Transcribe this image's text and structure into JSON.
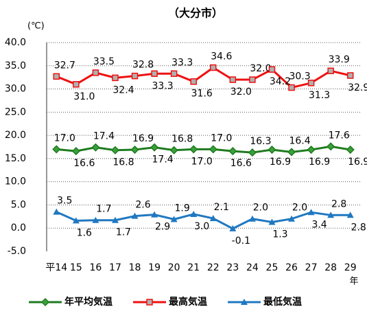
{
  "chart_data": {
    "type": "line",
    "title": "（大分市）",
    "y_unit": "(℃)",
    "x_label": "年",
    "categories": [
      "平14",
      "15",
      "16",
      "17",
      "18",
      "19",
      "20",
      "21",
      "22",
      "23",
      "24",
      "25",
      "26",
      "27",
      "28",
      "29"
    ],
    "series": [
      {
        "name": "年平均気温",
        "color": "#1e7b1e",
        "marker": "diamond",
        "values": [
          17.0,
          16.6,
          17.4,
          16.8,
          16.9,
          17.4,
          16.8,
          17.0,
          17.0,
          16.6,
          16.3,
          16.9,
          16.4,
          16.9,
          17.6,
          16.9
        ],
        "value_labels": [
          "17.0",
          "16.6",
          "17.4",
          "16.8",
          "16.9",
          "17.4",
          "16.8",
          "17.0",
          "17.0",
          "16.6",
          "16.3",
          "16.9",
          "16.4",
          "16.9",
          "17.6",
          "16.9"
        ]
      },
      {
        "name": "最高気温",
        "color": "#ee1111",
        "marker": "square",
        "values": [
          32.7,
          31.0,
          33.5,
          32.4,
          32.8,
          33.3,
          33.3,
          31.6,
          34.6,
          32.0,
          32.0,
          34.2,
          30.3,
          31.3,
          33.9,
          32.9
        ],
        "value_labels": [
          "32.7",
          "31.0",
          "33.5",
          "32.4",
          "32.8",
          "33.3",
          "33.3",
          "31.6",
          "34.6",
          "32.0",
          "32.0",
          "34.2",
          "30.3",
          "31.3",
          "33.9",
          "32.9"
        ]
      },
      {
        "name": "最低気温",
        "color": "#1f78c1",
        "marker": "triangle",
        "values": [
          3.5,
          1.6,
          1.7,
          1.7,
          2.6,
          2.9,
          1.9,
          3.0,
          2.1,
          -0.1,
          2.0,
          1.3,
          2.0,
          3.4,
          2.8,
          2.8
        ],
        "value_labels": [
          "3.5",
          "1.6",
          "1.7",
          "1.7",
          "2.6",
          "2.9",
          "1.9",
          "3.0",
          "2.1",
          "-0.1",
          "2.0",
          "1.3",
          "2.0",
          "3.4",
          "2.8",
          "2.8"
        ]
      }
    ],
    "ylim": [
      -5,
      40
    ],
    "yticks": [
      {
        "value": -5,
        "label": "-5.0"
      },
      {
        "value": 0,
        "label": "0.0"
      },
      {
        "value": 5,
        "label": "5.0"
      },
      {
        "value": 10,
        "label": "10.0"
      },
      {
        "value": 15,
        "label": "15.0"
      },
      {
        "value": 20,
        "label": "20.0"
      },
      {
        "value": 25,
        "label": "25.0"
      },
      {
        "value": 30,
        "label": "30.0"
      },
      {
        "value": 35,
        "label": "35.0"
      },
      {
        "value": 40,
        "label": "40.0"
      }
    ],
    "grid": true,
    "legend": "bottom"
  }
}
